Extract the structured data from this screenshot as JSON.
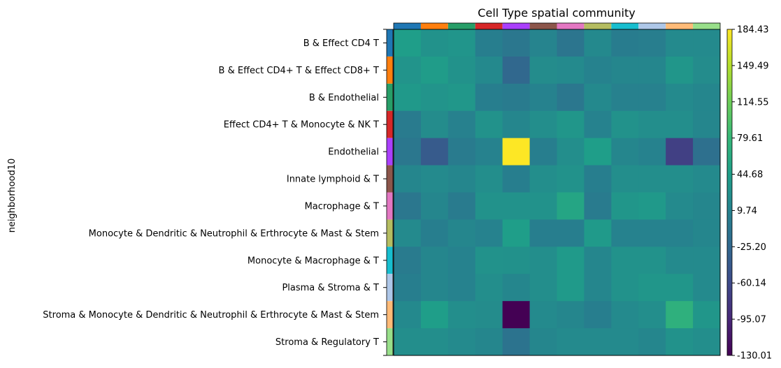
{
  "chart_data": {
    "type": "heatmap",
    "title": "Cell Type spatial community",
    "ylabel": "neighborhood10",
    "xlabel": "",
    "rows": [
      "B & Effect CD4 T",
      "B & Effect CD4+ T & Effect CD8+ T",
      "B & Endothelial",
      "Effect CD4+ T & Monocyte & NK T",
      "Endothelial",
      "Innate lymphoid & T",
      "Macrophage & T",
      "Monocyte & Dendritic & Neutrophil & Erthrocyte & Mast & Stem",
      "Monocyte & Macrophage & T",
      "Plasma & Stroma & T",
      "Stroma & Monocyte & Dendritic & Neutrophil & Erthrocyte & Mast & Stem",
      "Stroma & Regulatory T"
    ],
    "row_colors": [
      "#1f77b4",
      "#ff7f0e",
      "#279e68",
      "#d62728",
      "#aa40fc",
      "#8c564b",
      "#e377c2",
      "#b5bd61",
      "#17becf",
      "#aec7e8",
      "#ffbb78",
      "#98df8a"
    ],
    "column_colors": [
      "#1f77b4",
      "#ff7f0e",
      "#279e68",
      "#d62728",
      "#aa40fc",
      "#8c564b",
      "#e377c2",
      "#b5bd61",
      "#17becf",
      "#aec7e8",
      "#ffbb78",
      "#98df8a"
    ],
    "values": [
      [
        45,
        30,
        33,
        5,
        -5,
        12,
        -8,
        18,
        2,
        4,
        20,
        20
      ],
      [
        32,
        42,
        30,
        18,
        -25,
        22,
        20,
        10,
        15,
        15,
        35,
        22
      ],
      [
        38,
        32,
        36,
        5,
        0,
        10,
        -5,
        18,
        8,
        8,
        20,
        15
      ],
      [
        0,
        22,
        8,
        30,
        15,
        25,
        35,
        10,
        30,
        25,
        25,
        15
      ],
      [
        -5,
        -40,
        0,
        10,
        184.43,
        5,
        25,
        45,
        15,
        10,
        -70,
        -15
      ],
      [
        15,
        20,
        15,
        25,
        5,
        25,
        30,
        5,
        25,
        25,
        25,
        20
      ],
      [
        -5,
        15,
        0,
        30,
        30,
        30,
        55,
        0,
        35,
        38,
        20,
        15
      ],
      [
        20,
        5,
        15,
        10,
        45,
        5,
        5,
        40,
        10,
        10,
        10,
        15
      ],
      [
        0,
        15,
        10,
        30,
        28,
        25,
        40,
        15,
        30,
        30,
        20,
        20
      ],
      [
        5,
        15,
        10,
        25,
        15,
        25,
        40,
        15,
        30,
        35,
        35,
        20
      ],
      [
        18,
        45,
        25,
        22,
        -130.01,
        20,
        15,
        5,
        20,
        25,
        70,
        35
      ],
      [
        25,
        25,
        20,
        15,
        -10,
        15,
        20,
        20,
        20,
        15,
        30,
        25
      ]
    ],
    "colorbar": {
      "min": -130.01,
      "max": 184.43,
      "ticks": [
        "184.43",
        "149.49",
        "114.55",
        "79.61",
        "44.68",
        "9.74",
        "-25.20",
        "-60.14",
        "-95.07",
        "-130.01"
      ],
      "colormap": "viridis"
    },
    "grid": false,
    "legend": "none"
  }
}
